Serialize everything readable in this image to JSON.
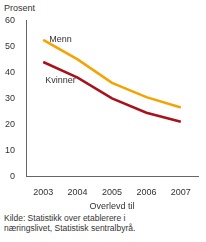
{
  "chart_data": {
    "type": "line",
    "y_label": "Prosent",
    "x_label": "Overlevd til",
    "source": "Kilde: Statistikk over etablerere i næringslivet, Statistisk sentralbyrå.",
    "categories": [
      "2003",
      "2004",
      "2005",
      "2006",
      "2007"
    ],
    "series": [
      {
        "name": "Menn",
        "color": "#f5a300",
        "values": [
          52.5,
          45,
          36,
          30.5,
          26.5
        ]
      },
      {
        "name": "Kvinner",
        "color": "#a8121c",
        "values": [
          44,
          38,
          30,
          24.5,
          21
        ]
      }
    ],
    "ylim": [
      0,
      60
    ],
    "yticks": [
      0,
      10,
      20,
      30,
      40,
      50,
      60
    ],
    "grid": false
  }
}
